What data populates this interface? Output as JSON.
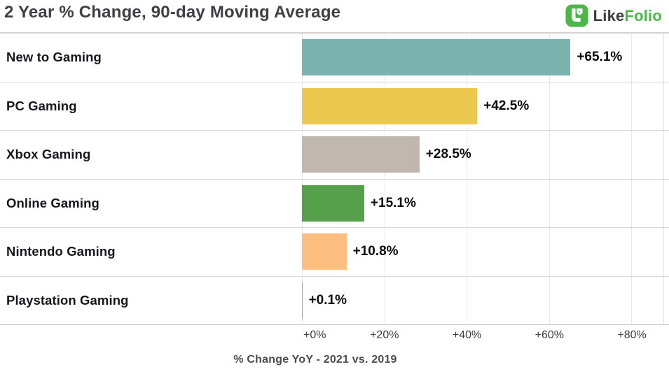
{
  "header": {
    "title": "2 Year % Change, 90-day Moving Average",
    "logo": {
      "brand_part1": "Like",
      "brand_part2": "Folio",
      "icon": "likefolio-monogram-icon",
      "green": "#4cb648",
      "dark": "#3b3c40"
    }
  },
  "chart_data": {
    "type": "bar",
    "orientation": "horizontal",
    "title": "2 Year % Change, 90-day Moving Average",
    "categories": [
      "New to Gaming",
      "PC Gaming",
      "Xbox Gaming",
      "Online Gaming",
      "Nintendo Gaming",
      "Playstation Gaming"
    ],
    "values": [
      65.1,
      42.5,
      28.5,
      15.1,
      10.8,
      0.1
    ],
    "value_labels": [
      "+65.1%",
      "+42.5%",
      "+28.5%",
      "+15.1%",
      "+10.8%",
      "+0.1%"
    ],
    "bar_colors": [
      "#79b5ae",
      "#ecc94e",
      "#c1b7b1",
      "#56a04c",
      "#fcbe7f",
      "#79b5ae"
    ],
    "xlabel": "% Change YoY - 2021 vs. 2019",
    "xlim": [
      0,
      87.8
    ],
    "x_ticks": [
      0,
      20,
      40,
      60,
      80
    ],
    "x_tick_labels": [
      "+0%",
      "+20%",
      "+40%",
      "+60%",
      "+80%"
    ],
    "grid": true,
    "legend": false,
    "gridline_color": "#e9e9e9",
    "separator_color": "#d7d7d7"
  }
}
